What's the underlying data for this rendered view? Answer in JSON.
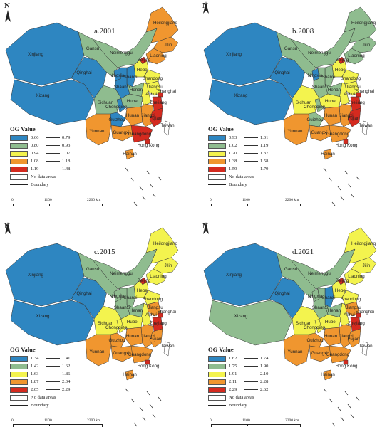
{
  "legend_title": "OG Value",
  "no_data_label": "No data areas",
  "boundary_label": "Boundary",
  "scale_ticks": [
    "0",
    "1100",
    "2200 km"
  ],
  "north_label": "N",
  "palette": [
    "#2e86c1",
    "#8fbc8f",
    "#f3f34e",
    "#f0962f",
    "#d42a1f"
  ],
  "provinces": [
    "Xinjiang",
    "Xizang",
    "Qinghai",
    "Gansu",
    "Neimenggu",
    "Heilongjiang",
    "Jilin",
    "Liaoning",
    "Beijing",
    "Hebei",
    "Shanxi",
    "Shandong",
    "Ningxia",
    "Shaanxi",
    "Henan",
    "Jiangsu",
    "Anhui",
    "Shanghai",
    "Sichuan",
    "Chongqing",
    "Hubei",
    "Hunan",
    "Jiangxi",
    "Zhejiang",
    "Fujian",
    "Guizhou",
    "Yunnan",
    "Guangxi",
    "Guangdong",
    "Hong Kong",
    "Taiwan",
    "Hainan"
  ],
  "panels": [
    {
      "title": "a.2001",
      "legend": [
        [
          "0.66",
          "0.79"
        ],
        [
          "0.80",
          "0.93"
        ],
        [
          "0.94",
          "1.07"
        ],
        [
          "1.08",
          "1.18"
        ],
        [
          "1.19",
          "1.48"
        ]
      ],
      "classes": {
        "Xinjiang": 0,
        "Xizang": 0,
        "Qinghai": 0,
        "Gansu": 1,
        "Neimenggu": 1,
        "Heilongjiang": 3,
        "Jilin": 3,
        "Liaoning": 3,
        "Beijing": 4,
        "Hebei": 2,
        "Shanxi": 0,
        "Shandong": 2,
        "Ningxia": 0,
        "Shaanxi": 0,
        "Henan": 1,
        "Jiangsu": 2,
        "Anhui": 2,
        "Shanghai": 4,
        "Sichuan": 1,
        "Chongqing": 0,
        "Hubei": 1,
        "Hunan": 3,
        "Jiangxi": 3,
        "Zhejiang": 4,
        "Fujian": 4,
        "Guizhou": 0,
        "Yunnan": 3,
        "Guangxi": 3,
        "Guangdong": 4,
        "Hong Kong": 4,
        "Taiwan": 5,
        "Hainan": 3
      }
    },
    {
      "title": "b.2008",
      "legend": [
        [
          "0.93",
          "1.01"
        ],
        [
          "1.02",
          "1.19"
        ],
        [
          "1.20",
          "1.37"
        ],
        [
          "1.38",
          "1.58"
        ],
        [
          "1.59",
          "1.79"
        ]
      ],
      "classes": {
        "Xinjiang": 0,
        "Xizang": 0,
        "Qinghai": 0,
        "Gansu": 1,
        "Neimenggu": 1,
        "Heilongjiang": 1,
        "Jilin": 1,
        "Liaoning": 1,
        "Beijing": 4,
        "Hebei": 2,
        "Shanxi": 1,
        "Shandong": 2,
        "Ningxia": 0,
        "Shaanxi": 1,
        "Henan": 1,
        "Jiangsu": 2,
        "Anhui": 2,
        "Shanghai": 4,
        "Sichuan": 2,
        "Chongqing": 1,
        "Hubei": 2,
        "Hunan": 3,
        "Jiangxi": 3,
        "Zhejiang": 4,
        "Fujian": 4,
        "Guizhou": 1,
        "Yunnan": 3,
        "Guangxi": 3,
        "Guangdong": 3,
        "Hong Kong": 4,
        "Taiwan": 5,
        "Hainan": 3
      }
    },
    {
      "title": "c.2015",
      "legend": [
        [
          "1.34",
          "1.41"
        ],
        [
          "1.42",
          "1.62"
        ],
        [
          "1.63",
          "1.86"
        ],
        [
          "1.87",
          "2.04"
        ],
        [
          "2.05",
          "2.29"
        ]
      ],
      "classes": {
        "Xinjiang": 0,
        "Xizang": 0,
        "Qinghai": 0,
        "Gansu": 1,
        "Neimenggu": 1,
        "Heilongjiang": 2,
        "Jilin": 2,
        "Liaoning": 2,
        "Beijing": 4,
        "Hebei": 2,
        "Shanxi": 1,
        "Shandong": 2,
        "Ningxia": 1,
        "Shaanxi": 1,
        "Henan": 1,
        "Jiangsu": 3,
        "Anhui": 2,
        "Shanghai": 4,
        "Sichuan": 2,
        "Chongqing": 2,
        "Hubei": 2,
        "Hunan": 3,
        "Jiangxi": 3,
        "Zhejiang": 4,
        "Fujian": 3,
        "Guizhou": 3,
        "Yunnan": 3,
        "Guangxi": 3,
        "Guangdong": 3,
        "Hong Kong": 4,
        "Taiwan": 5,
        "Hainan": 3
      }
    },
    {
      "title": "d.2021",
      "legend": [
        [
          "1.62",
          "1.74"
        ],
        [
          "1.75",
          "1.90"
        ],
        [
          "1.91",
          "2.10"
        ],
        [
          "2.11",
          "2.28"
        ],
        [
          "2.29",
          "2.62"
        ]
      ],
      "classes": {
        "Xinjiang": 0,
        "Xizang": 1,
        "Qinghai": 0,
        "Gansu": 1,
        "Neimenggu": 1,
        "Heilongjiang": 2,
        "Jilin": 2,
        "Liaoning": 2,
        "Beijing": 4,
        "Hebei": 2,
        "Shanxi": 0,
        "Shandong": 2,
        "Ningxia": 1,
        "Shaanxi": 1,
        "Henan": 1,
        "Jiangsu": 3,
        "Anhui": 2,
        "Shanghai": 4,
        "Sichuan": 2,
        "Chongqing": 2,
        "Hubei": 2,
        "Hunan": 3,
        "Jiangxi": 3,
        "Zhejiang": 4,
        "Fujian": 3,
        "Guizhou": 3,
        "Yunnan": 3,
        "Guangxi": 3,
        "Guangdong": 3,
        "Hong Kong": 4,
        "Taiwan": 5,
        "Hainan": 3
      }
    }
  ]
}
